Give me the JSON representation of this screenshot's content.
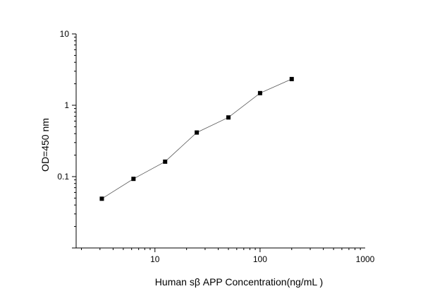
{
  "chart_data": {
    "type": "scatter",
    "xlabel": "Human sβ APP Concentration(ng/mL )",
    "ylabel": "OD=450 nm",
    "xscale": "log",
    "yscale": "log",
    "xlim": [
      1.78,
      1000
    ],
    "ylim": [
      0.01,
      10
    ],
    "x_ticks": [
      {
        "value": 10,
        "label": "10"
      },
      {
        "value": 100,
        "label": "100"
      },
      {
        "value": 1000,
        "label": "1000"
      }
    ],
    "y_ticks": [
      {
        "value": 0.1,
        "label": "0.1"
      },
      {
        "value": 1,
        "label": "1"
      },
      {
        "value": 10,
        "label": "10"
      }
    ],
    "grid": false,
    "legend": "none",
    "marker": "square",
    "connected": true,
    "colors": {
      "marker": "#000000",
      "line": "#555555",
      "axis": "#000000"
    },
    "series": [
      {
        "x": [
          3.125,
          6.25,
          12.5,
          25,
          50,
          100,
          200
        ],
        "y": [
          0.049,
          0.093,
          0.162,
          0.415,
          0.675,
          1.48,
          2.33
        ]
      }
    ]
  }
}
